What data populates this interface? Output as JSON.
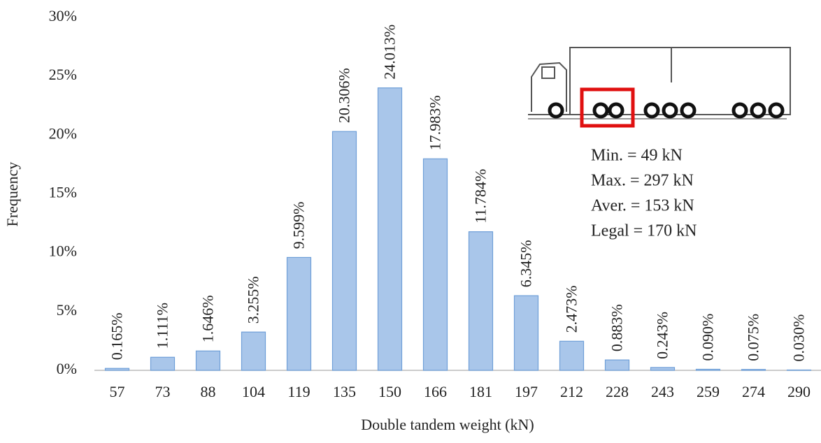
{
  "chart_data": {
    "type": "bar",
    "x_label": "Double tandem weight (kN)",
    "y_label": "Frequency",
    "categories": [
      "57",
      "73",
      "88",
      "104",
      "119",
      "135",
      "150",
      "166",
      "181",
      "197",
      "212",
      "228",
      "243",
      "259",
      "274",
      "290"
    ],
    "values": [
      0.165,
      1.111,
      1.646,
      3.255,
      9.599,
      20.306,
      24.013,
      17.983,
      11.784,
      6.345,
      2.473,
      0.883,
      0.243,
      0.09,
      0.075,
      0.03
    ],
    "value_labels": [
      "0.165%",
      "1.111%",
      "1.646%",
      "3.255%",
      "9.599%",
      "20.306%",
      "24.013%",
      "17.983%",
      "11.784%",
      "6.345%",
      "2.473%",
      "0.883%",
      "0.243%",
      "0.090%",
      "0.075%",
      "0.030%"
    ],
    "color": "#a9c6ea",
    "ylim": [
      0,
      30
    ],
    "yticks": [
      {
        "value": 0,
        "label": "0%"
      },
      {
        "value": 5,
        "label": "5%"
      },
      {
        "value": 10,
        "label": "10%"
      },
      {
        "value": 15,
        "label": "15%"
      },
      {
        "value": 20,
        "label": "20%"
      },
      {
        "value": 25,
        "label": "25%"
      },
      {
        "value": 30,
        "label": "30%"
      }
    ],
    "grid": false,
    "annotations": [
      "Min. = 49 kN",
      "Max. = 297 kN",
      "Aver. = 153 kN",
      "Legal = 170 kN"
    ]
  }
}
